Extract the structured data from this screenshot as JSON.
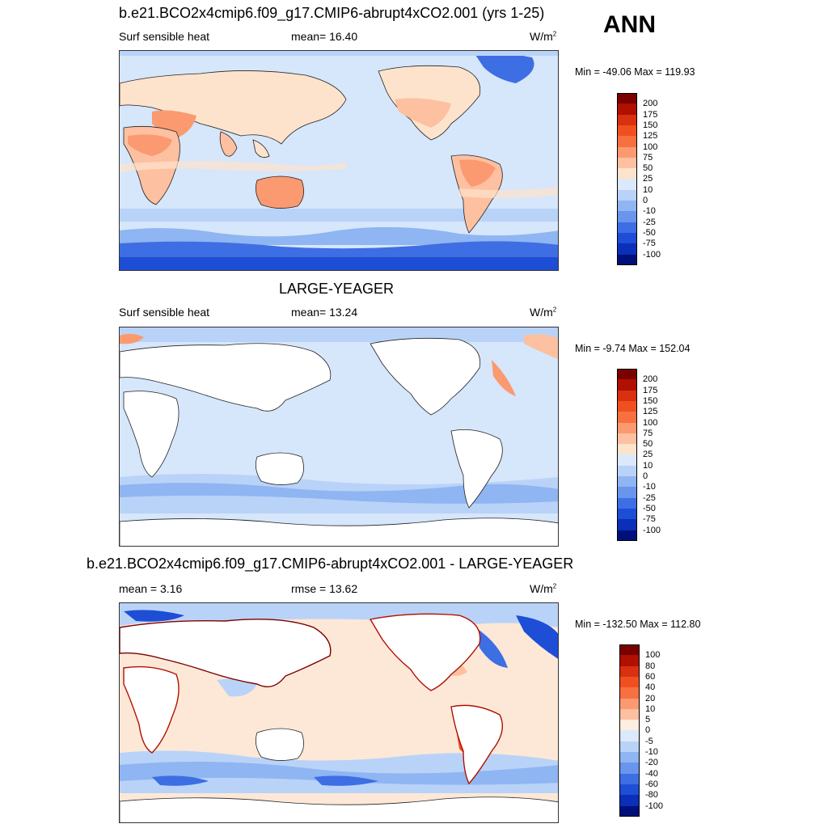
{
  "season": "ANN",
  "panels": [
    {
      "title": "b.e21.BCO2x4cmip6.f09_g17.CMIP6-abrupt4xCO2.001 (yrs 1-25)",
      "left_label": "Surf sensible heat",
      "center_label": "mean=  16.40",
      "units": "W/m",
      "units_sup": "2",
      "minmax": "Min = -49.06 Max = 119.93",
      "colorbar_levels": [
        "200",
        "175",
        "150",
        "125",
        "100",
        "75",
        "50",
        "25",
        "10",
        "0",
        "-10",
        "-25",
        "-50",
        "-75",
        "-100"
      ],
      "colorbar_colors": [
        "#7a0000",
        "#b01000",
        "#d93010",
        "#f05020",
        "#f87040",
        "#fb9a70",
        "#fdc0a0",
        "#fde3cc",
        "#dbe9fb",
        "#b9d3f8",
        "#8fb5f2",
        "#6a95ec",
        "#3e6ee3",
        "#1e4dd6",
        "#0a2fb8",
        "#00107a"
      ]
    },
    {
      "title": "LARGE-YEAGER",
      "left_label": "Surf sensible heat",
      "center_label": "mean=  13.24",
      "units": "W/m",
      "units_sup": "2",
      "minmax": "Min =  -9.74 Max = 152.04",
      "colorbar_levels": [
        "200",
        "175",
        "150",
        "125",
        "100",
        "75",
        "50",
        "25",
        "10",
        "0",
        "-10",
        "-25",
        "-50",
        "-75",
        "-100"
      ],
      "colorbar_colors": [
        "#7a0000",
        "#b01000",
        "#d93010",
        "#f05020",
        "#f87040",
        "#fb9a70",
        "#fdc0a0",
        "#fde3cc",
        "#dbe9fb",
        "#b9d3f8",
        "#8fb5f2",
        "#6a95ec",
        "#3e6ee3",
        "#1e4dd6",
        "#0a2fb8",
        "#00107a"
      ]
    },
    {
      "title": "b.e21.BCO2x4cmip6.f09_g17.CMIP6-abrupt4xCO2.001 - LARGE-YEAGER",
      "left_label": "mean =   3.16",
      "center_label": "rmse =  13.62",
      "units": "W/m",
      "units_sup": "2",
      "minmax": "Min = -132.50 Max = 112.80",
      "colorbar_levels": [
        "100",
        "80",
        "60",
        "40",
        "20",
        "10",
        "5",
        "0",
        "-5",
        "-10",
        "-20",
        "-40",
        "-60",
        "-80",
        "-100"
      ],
      "colorbar_colors": [
        "#7a0000",
        "#b01000",
        "#d93010",
        "#f05020",
        "#f87040",
        "#fb9a70",
        "#fdc0a0",
        "#fdeee0",
        "#dbe9fb",
        "#b9d3f8",
        "#8fb5f2",
        "#6a95ec",
        "#3e6ee3",
        "#1e4dd6",
        "#0a2fb8",
        "#00107a"
      ]
    }
  ]
}
